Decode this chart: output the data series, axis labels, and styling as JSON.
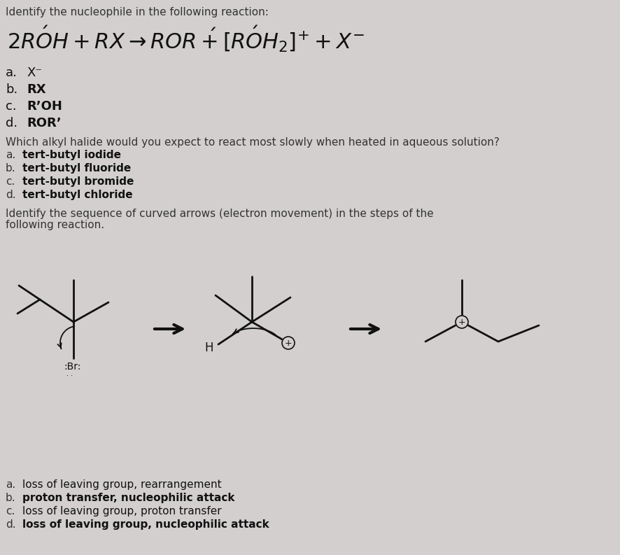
{
  "background_color": "#d3cfcf",
  "text_color": "#111111",
  "q1_header": "Identify the nucleophile in the following reaction:",
  "q2_header": "Which alkyl halide would you expect to react most slowly when heated in aqueous solution?",
  "q3_header_line1": "Identify the sequence of curved arrows (electron movement) in the steps of the",
  "q3_header_line2": "following reaction.",
  "q1_options": [
    [
      "a.",
      "X⁻",
      false
    ],
    [
      "b.",
      "RX",
      true
    ],
    [
      "c.",
      "R’OH",
      true
    ],
    [
      "d.",
      "ROR’",
      true
    ]
  ],
  "q2_options": [
    [
      "a.",
      "tert-butyl iodide"
    ],
    [
      "b.",
      "tert-butyl fluoride"
    ],
    [
      "c.",
      "tert-butyl bromide"
    ],
    [
      "d.",
      "tert-butyl chloride"
    ]
  ],
  "q3_options": [
    [
      "a.",
      "loss of leaving group, rearrangement",
      false
    ],
    [
      "b.",
      "proton transfer, nucleophilic attack",
      true
    ],
    [
      "c.",
      "loss of leaving group, proton transfer",
      false
    ],
    [
      "d.",
      "loss of leaving group, nucleophilic attack",
      true
    ]
  ]
}
